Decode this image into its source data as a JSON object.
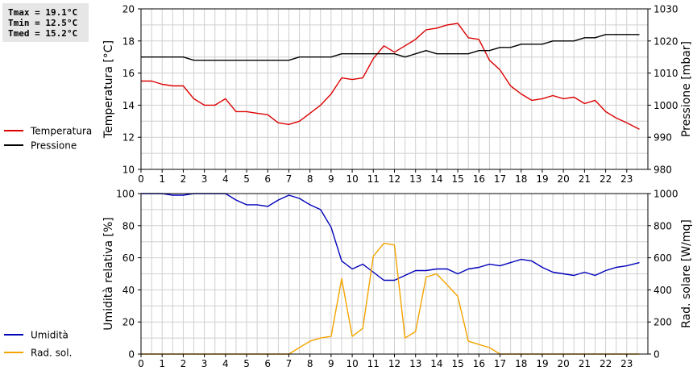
{
  "stats": {
    "tmax": "Tmax = 19.1°C",
    "tmin": "Tmin = 12.5°C",
    "tmed": "Tmed = 15.2°C"
  },
  "colors": {
    "temperature": "#dd0000",
    "pressure": "#000000",
    "humidity": "#0000bb",
    "solar": "#f5a300",
    "grid": "#cfcfcf"
  },
  "chart_data": [
    {
      "type": "line",
      "x_ticks": [
        "0",
        "1",
        "2",
        "3",
        "4",
        "5",
        "6",
        "7",
        "8",
        "9",
        "10",
        "11",
        "12",
        "13",
        "14",
        "15",
        "16",
        "17",
        "18",
        "19",
        "20",
        "21",
        "22",
        "23"
      ],
      "xlim": [
        0,
        24
      ],
      "ylabel_left": "Temperatura [°C]",
      "ylabel_right": "Pressione [mbar]",
      "ylim_left": [
        10,
        20
      ],
      "ylim_right": [
        980,
        1030
      ],
      "yticks_left": [
        "10",
        "12",
        "14",
        "16",
        "18",
        "20"
      ],
      "yticks_right": [
        "980",
        "990",
        "1000",
        "1010",
        "1020",
        "1030"
      ],
      "grid": true,
      "legend_position": "left",
      "series": [
        {
          "name": "Temperatura",
          "axis": "left",
          "x": [
            0,
            0.5,
            1,
            1.5,
            2,
            2.5,
            3,
            3.5,
            4,
            4.5,
            5,
            5.5,
            6,
            6.5,
            7,
            7.5,
            8,
            8.5,
            9,
            9.5,
            10,
            10.5,
            11,
            11.5,
            12,
            12.5,
            13,
            13.5,
            14,
            14.5,
            15,
            15.5,
            16,
            16.5,
            17,
            17.5,
            18,
            18.5,
            19,
            19.5,
            20,
            20.5,
            21,
            21.5,
            22,
            22.5,
            23,
            23.6
          ],
          "y": [
            15.5,
            15.5,
            15.3,
            15.2,
            15.2,
            14.4,
            14.0,
            14.0,
            14.4,
            13.6,
            13.6,
            13.5,
            13.4,
            12.9,
            12.8,
            13.0,
            13.5,
            14.0,
            14.7,
            15.7,
            15.6,
            15.7,
            16.9,
            17.7,
            17.3,
            17.7,
            18.1,
            18.7,
            18.8,
            19.0,
            19.1,
            18.2,
            18.1,
            16.8,
            16.2,
            15.2,
            14.7,
            14.3,
            14.4,
            14.6,
            14.4,
            14.5,
            14.1,
            14.3,
            13.6,
            13.2,
            12.9,
            12.5
          ]
        },
        {
          "name": "Pressione",
          "axis": "right",
          "x": [
            0,
            0.5,
            1,
            1.5,
            2,
            2.5,
            3,
            3.5,
            4,
            4.5,
            5,
            5.5,
            6,
            6.5,
            7,
            7.5,
            8,
            8.5,
            9,
            9.5,
            10,
            10.5,
            11,
            11.5,
            12,
            12.5,
            13,
            13.5,
            14,
            14.5,
            15,
            15.5,
            16,
            16.5,
            17,
            17.5,
            18,
            18.5,
            19,
            19.5,
            20,
            20.5,
            21,
            21.5,
            22,
            22.5,
            23,
            23.6
          ],
          "y": [
            1015,
            1015,
            1015,
            1015,
            1015,
            1014,
            1014,
            1014,
            1014,
            1014,
            1014,
            1014,
            1014,
            1014,
            1014,
            1015,
            1015,
            1015,
            1015,
            1016,
            1016,
            1016,
            1016,
            1016,
            1016,
            1015,
            1016,
            1017,
            1016,
            1016,
            1016,
            1016,
            1017,
            1017,
            1018,
            1018,
            1019,
            1019,
            1019,
            1020,
            1020,
            1020,
            1021,
            1021,
            1022,
            1022,
            1022,
            1022
          ]
        }
      ]
    },
    {
      "type": "line",
      "x_ticks": [
        "0",
        "1",
        "2",
        "3",
        "4",
        "5",
        "6",
        "7",
        "8",
        "9",
        "10",
        "11",
        "12",
        "13",
        "14",
        "15",
        "16",
        "17",
        "18",
        "19",
        "20",
        "21",
        "22",
        "23"
      ],
      "xlim": [
        0,
        24
      ],
      "ylabel_left": "Umidità relativa [%]",
      "ylabel_right": "Rad. solare [W/mq]",
      "ylim_left": [
        0,
        100
      ],
      "ylim_right": [
        0,
        1000
      ],
      "yticks_left": [
        "0",
        "20",
        "40",
        "60",
        "80",
        "100"
      ],
      "yticks_right": [
        "0",
        "200",
        "400",
        "600",
        "800",
        "1000"
      ],
      "grid": true,
      "legend_position": "left",
      "series": [
        {
          "name": "Umidità",
          "axis": "left",
          "x": [
            0,
            0.5,
            1,
            1.5,
            2,
            2.5,
            3,
            3.5,
            4,
            4.5,
            5,
            5.5,
            6,
            6.5,
            7,
            7.5,
            8,
            8.5,
            9,
            9.5,
            10,
            10.5,
            11,
            11.5,
            12,
            12.5,
            13,
            13.5,
            14,
            14.5,
            15,
            15.5,
            16,
            16.5,
            17,
            17.5,
            18,
            18.5,
            19,
            19.5,
            20,
            20.5,
            21,
            21.5,
            22,
            22.5,
            23,
            23.6
          ],
          "y": [
            100,
            100,
            100,
            99,
            99,
            100,
            100,
            100,
            100,
            96,
            93,
            93,
            92,
            96,
            99,
            97,
            93,
            90,
            79,
            58,
            53,
            56,
            51,
            46,
            46,
            49,
            52,
            52,
            53,
            53,
            50,
            53,
            54,
            56,
            55,
            57,
            59,
            58,
            54,
            51,
            50,
            49,
            51,
            49,
            52,
            54,
            55,
            57
          ]
        },
        {
          "name": "Rad. sol.",
          "axis": "right",
          "x": [
            0,
            0.5,
            1,
            1.5,
            2,
            2.5,
            3,
            3.5,
            4,
            4.5,
            5,
            5.5,
            6,
            6.5,
            7,
            7.5,
            8,
            8.5,
            9,
            9.5,
            10,
            10.5,
            11,
            11.5,
            12,
            12.5,
            13,
            13.5,
            14,
            14.5,
            15,
            15.5,
            16,
            16.5,
            17,
            17.5,
            18,
            18.5,
            19,
            19.5,
            20,
            20.5,
            21,
            21.5,
            22,
            22.5,
            23,
            23.6
          ],
          "y": [
            0,
            0,
            0,
            0,
            0,
            0,
            0,
            0,
            0,
            0,
            0,
            0,
            0,
            0,
            0,
            40,
            80,
            100,
            110,
            470,
            110,
            160,
            610,
            690,
            680,
            100,
            140,
            480,
            500,
            430,
            360,
            80,
            60,
            40,
            0,
            0,
            0,
            0,
            0,
            0,
            0,
            0,
            0,
            0,
            0,
            0,
            0,
            0
          ]
        }
      ]
    }
  ]
}
